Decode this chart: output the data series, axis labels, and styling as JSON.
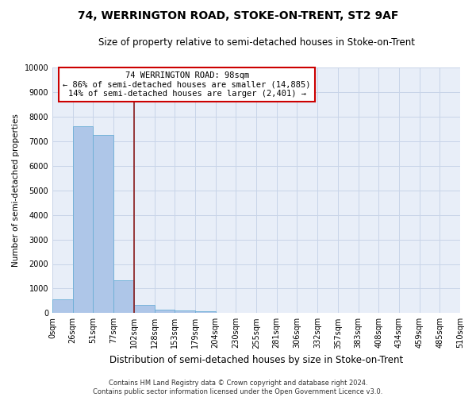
{
  "title": "74, WERRINGTON ROAD, STOKE-ON-TRENT, ST2 9AF",
  "subtitle": "Size of property relative to semi-detached houses in Stoke-on-Trent",
  "xlabel": "Distribution of semi-detached houses by size in Stoke-on-Trent",
  "ylabel": "Number of semi-detached properties",
  "bin_labels": [
    "0sqm",
    "26sqm",
    "51sqm",
    "77sqm",
    "102sqm",
    "128sqm",
    "153sqm",
    "179sqm",
    "204sqm",
    "230sqm",
    "255sqm",
    "281sqm",
    "306sqm",
    "332sqm",
    "357sqm",
    "383sqm",
    "408sqm",
    "434sqm",
    "459sqm",
    "485sqm",
    "510sqm"
  ],
  "bar_values": [
    550,
    7600,
    7250,
    1350,
    320,
    155,
    110,
    80,
    0,
    0,
    0,
    0,
    0,
    0,
    0,
    0,
    0,
    0,
    0,
    0
  ],
  "bar_color": "#aec6e8",
  "bar_edge_color": "#6baed6",
  "property_line_color": "#8b1a1a",
  "annotation_line1": "74 WERRINGTON ROAD: 98sqm",
  "annotation_line2": "← 86% of semi-detached houses are smaller (14,885)",
  "annotation_line3": "14% of semi-detached houses are larger (2,401) →",
  "annotation_box_color": "white",
  "annotation_box_edge_color": "#cc0000",
  "ylim": [
    0,
    10000
  ],
  "yticks": [
    0,
    1000,
    2000,
    3000,
    4000,
    5000,
    6000,
    7000,
    8000,
    9000,
    10000
  ],
  "grid_color": "#c8d4e8",
  "background_color": "#e8eef8",
  "footer_line1": "Contains HM Land Registry data © Crown copyright and database right 2024.",
  "footer_line2": "Contains public sector information licensed under the Open Government Licence v3.0.",
  "title_fontsize": 10,
  "subtitle_fontsize": 8.5,
  "xlabel_fontsize": 8.5,
  "ylabel_fontsize": 7.5,
  "tick_fontsize": 7,
  "annotation_fontsize": 7.5,
  "footer_fontsize": 6
}
